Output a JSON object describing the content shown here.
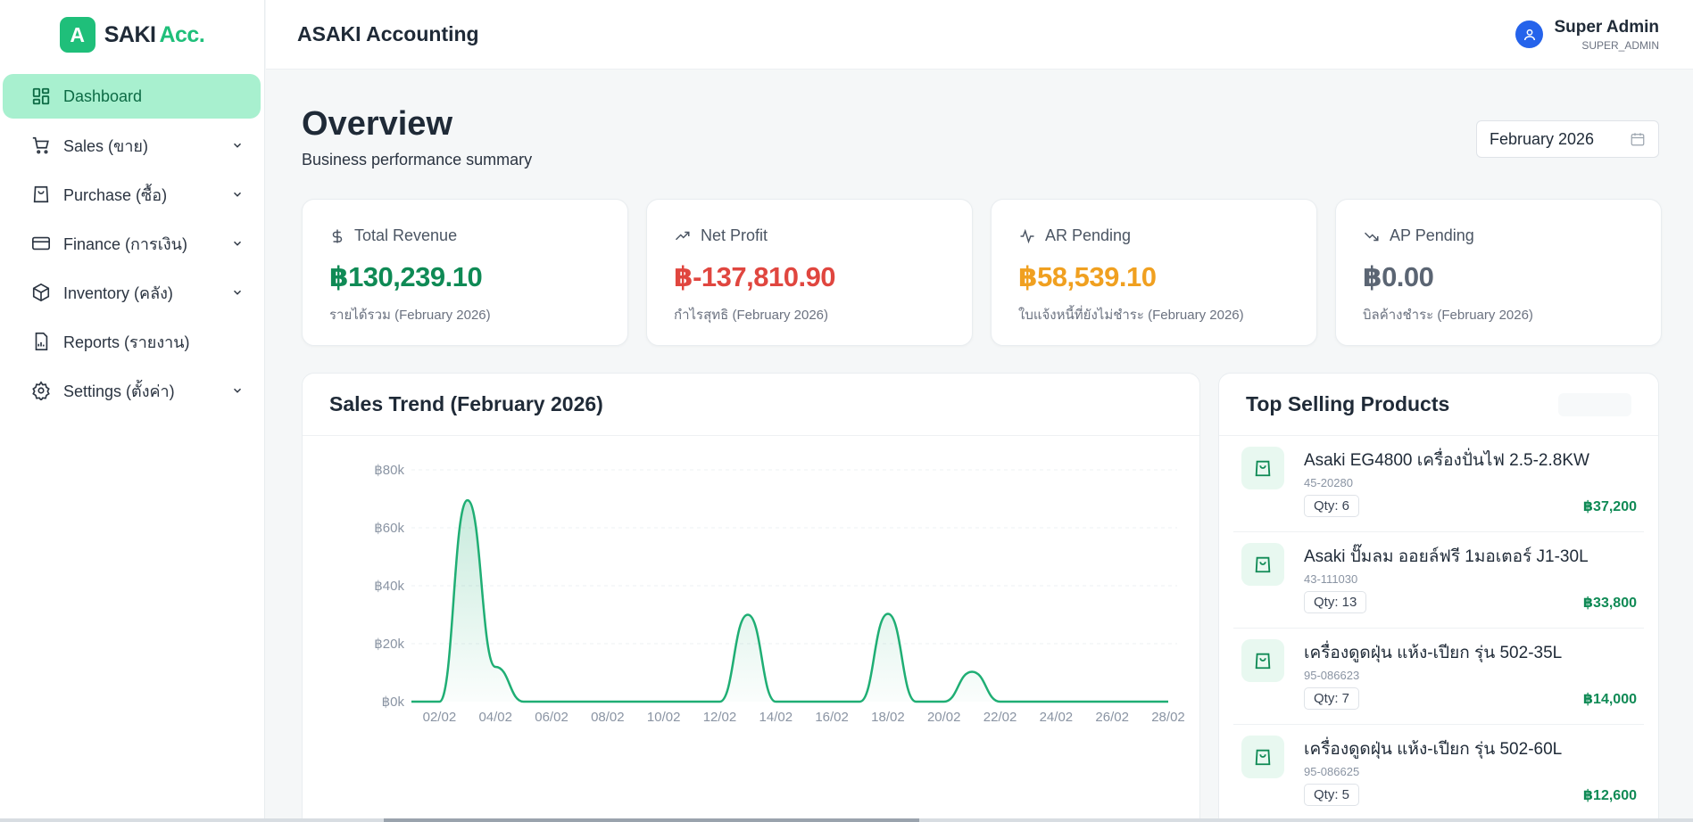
{
  "brand": {
    "logo_letter": "A",
    "name": "SAKI",
    "name_accent": "Acc.",
    "color": "#1fbf7a"
  },
  "sidebar": {
    "items": [
      {
        "label": "Dashboard",
        "icon": "dashboard-grid-icon",
        "active": true,
        "has_children": false
      },
      {
        "label": "Sales (ขาย)",
        "icon": "cart-icon",
        "active": false,
        "has_children": true
      },
      {
        "label": "Purchase (ซื้อ)",
        "icon": "shopping-bag-icon",
        "active": false,
        "has_children": true
      },
      {
        "label": "Finance (การเงิน)",
        "icon": "credit-card-icon",
        "active": false,
        "has_children": true
      },
      {
        "label": "Inventory (คลัง)",
        "icon": "box-icon",
        "active": false,
        "has_children": true
      },
      {
        "label": "Reports (รายงาน)",
        "icon": "report-file-icon",
        "active": false,
        "has_children": false
      },
      {
        "label": "Settings (ตั้งค่า)",
        "icon": "gear-icon",
        "active": false,
        "has_children": true
      }
    ]
  },
  "header": {
    "title": "ASAKI Accounting",
    "user_name": "Super Admin",
    "user_role": "SUPER_ADMIN"
  },
  "overview": {
    "title": "Overview",
    "subtitle": "Business performance summary",
    "period": "February 2026"
  },
  "kpis": [
    {
      "label": "Total Revenue",
      "icon": "dollar-icon",
      "value": "฿130,239.10",
      "caption": "รายได้รวม (February 2026)",
      "color": "#0f8a55"
    },
    {
      "label": "Net Profit",
      "icon": "trending-up-icon",
      "value": "฿-137,810.90",
      "caption": "กำไรสุทธิ (February 2026)",
      "color": "#e0463f"
    },
    {
      "label": "AR Pending",
      "icon": "activity-icon",
      "value": "฿58,539.10",
      "caption": "ใบแจ้งหนี้ที่ยังไม่ชำระ (February 2026)",
      "color": "#f0a020"
    },
    {
      "label": "AP Pending",
      "icon": "trending-down-icon",
      "value": "฿0.00",
      "caption": "บิลค้างชำระ (February 2026)",
      "color": "#5b6573"
    }
  ],
  "sales_trend": {
    "title": "Sales Trend (February 2026)"
  },
  "chart_data": {
    "type": "area",
    "x": [
      "01/02",
      "02/02",
      "03/02",
      "04/02",
      "05/02",
      "06/02",
      "07/02",
      "08/02",
      "09/02",
      "10/02",
      "11/02",
      "12/02",
      "13/02",
      "14/02",
      "15/02",
      "16/02",
      "17/02",
      "18/02",
      "19/02",
      "20/02",
      "21/02",
      "22/02",
      "23/02",
      "24/02",
      "25/02",
      "26/02",
      "27/02",
      "28/02"
    ],
    "values": [
      0,
      0,
      69500,
      12000,
      0,
      0,
      0,
      0,
      0,
      0,
      0,
      0,
      30000,
      0,
      0,
      0,
      0,
      30300,
      0,
      0,
      10300,
      0,
      0,
      0,
      0,
      0,
      0,
      0
    ],
    "x_tick_labels": [
      "02/02",
      "04/02",
      "06/02",
      "08/02",
      "10/02",
      "12/02",
      "14/02",
      "16/02",
      "18/02",
      "20/02",
      "22/02",
      "24/02",
      "26/02",
      "28/02"
    ],
    "y_tick_labels": [
      "฿0k",
      "฿20k",
      "฿40k",
      "฿60k",
      "฿80k"
    ],
    "ylim": [
      0,
      80000
    ],
    "color": "#1fae74",
    "grid": true
  },
  "top_products": {
    "title": "Top Selling Products",
    "items": [
      {
        "name": "Asaki EG4800 เครื่องปั่นไฟ 2.5-2.8KW",
        "code": "45-20280",
        "qty": "Qty: 6",
        "amount": "฿37,200"
      },
      {
        "name": "Asaki ปั๊มลม ออยล์ฟรี 1มอเตอร์ J1-30L",
        "code": "43-111030",
        "qty": "Qty: 13",
        "amount": "฿33,800"
      },
      {
        "name": "เครื่องดูดฝุ่น แห้ง-เปียก รุ่น 502-35L",
        "code": "95-086623",
        "qty": "Qty: 7",
        "amount": "฿14,000"
      },
      {
        "name": "เครื่องดูดฝุ่น แห้ง-เปียก รุ่น 502-60L",
        "code": "95-086625",
        "qty": "Qty: 5",
        "amount": "฿12,600"
      }
    ]
  }
}
